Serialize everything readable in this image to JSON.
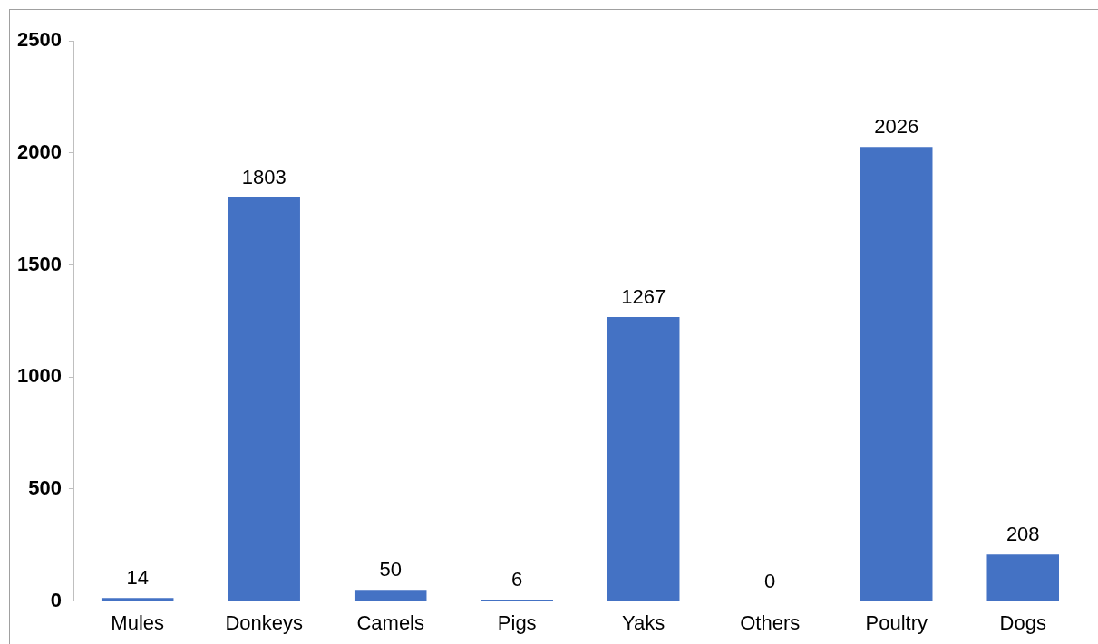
{
  "chart_data": {
    "type": "bar",
    "categories": [
      "Mules",
      "Donkeys",
      "Camels",
      "Pigs",
      "Yaks",
      "Others",
      "Poultry",
      "Dogs"
    ],
    "values": [
      14,
      1803,
      50,
      6,
      1267,
      0,
      2026,
      208
    ],
    "color": "#4472c4",
    "ylim": [
      0,
      2500
    ],
    "yticks": [
      0,
      500,
      1000,
      1500,
      2000,
      2500
    ],
    "grid": false,
    "data_labels": true
  }
}
